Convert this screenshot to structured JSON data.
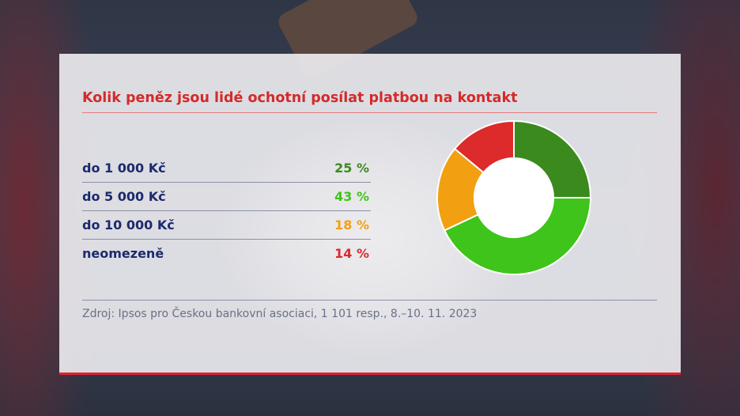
{
  "chart_data": {
    "type": "pie",
    "title": "Kolik peněz jsou lidé ochotní posílat platbou na kontakt",
    "categories": [
      "do 1 000 Kč",
      "do 5 000 Kč",
      "do 10 000 Kč",
      "neomezeně"
    ],
    "values": [
      25,
      43,
      18,
      14
    ],
    "value_labels": [
      "25 %",
      "43 %",
      "18 %",
      "14 %"
    ],
    "colors": [
      "#3a8a1e",
      "#3ec41a",
      "#f2a012",
      "#dd2a2a"
    ],
    "unit": "%",
    "legend": "left"
  },
  "source": "Zdroj: Ipsos pro Českou bankovní asociaci, 1 101 resp., 8.–10. 11. 2023"
}
